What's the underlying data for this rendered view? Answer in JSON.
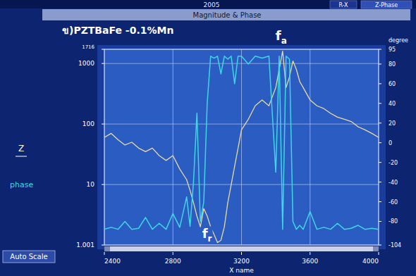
{
  "screen": {
    "header": "2005",
    "tabs": [
      "R-X",
      "Z-Phase"
    ],
    "button": "Auto Scale"
  },
  "chart_data": {
    "type": "line",
    "title": "Magnitude & Phase",
    "subtitle": "ข)PZTBaFe -0.1%Mn",
    "x_label": "X name",
    "y2_label": "degree",
    "log": "y",
    "grid": true,
    "legend": "left",
    "x": [
      2400,
      2440,
      2480,
      2520,
      2560,
      2600,
      2640,
      2680,
      2720,
      2760,
      2800,
      2840,
      2880,
      2900,
      2920,
      2940,
      2960,
      2980,
      3000,
      3020,
      3040,
      3060,
      3080,
      3100,
      3120,
      3140,
      3160,
      3180,
      3200,
      3240,
      3280,
      3320,
      3360,
      3400,
      3420,
      3440,
      3460,
      3480,
      3500,
      3520,
      3540,
      3560,
      3600,
      3640,
      3680,
      3720,
      3760,
      3800,
      3840,
      3880,
      3920,
      3960,
      4000
    ],
    "series": [
      {
        "name": "Z",
        "color": "#ead9a2",
        "values": [
          60,
          70,
          55,
          45,
          50,
          40,
          35,
          40,
          30,
          25,
          30,
          18,
          12,
          8,
          5,
          3,
          2,
          4,
          3,
          2,
          1.5,
          1.1,
          1.2,
          2,
          5,
          10,
          20,
          40,
          80,
          120,
          200,
          250,
          200,
          400,
          800,
          1600,
          400,
          600,
          1100,
          800,
          500,
          400,
          250,
          200,
          180,
          150,
          130,
          120,
          110,
          90,
          80,
          70,
          60
        ]
      },
      {
        "name": "phase",
        "color": "#3fd6e6",
        "axis": "y2",
        "values": [
          -88,
          -86,
          -88,
          -80,
          -88,
          -87,
          -76,
          -88,
          -82,
          -88,
          -72,
          -86,
          -55,
          -85,
          -40,
          30,
          -80,
          -60,
          40,
          88,
          86,
          88,
          70,
          88,
          85,
          88,
          60,
          88,
          88,
          80,
          88,
          86,
          88,
          -30,
          88,
          -88,
          88,
          85,
          -80,
          -88,
          -84,
          -88,
          -70,
          -88,
          -86,
          -88,
          -82,
          -88,
          -87,
          -84,
          -88,
          -87,
          -88
        ]
      }
    ],
    "xlim": [
      2400,
      4000
    ],
    "xticks": [
      2400,
      2800,
      3200,
      3600,
      4000
    ],
    "ylim": [
      1.001,
      1716
    ],
    "yticks": [
      1.001,
      10,
      100,
      1000,
      1716
    ],
    "y2lim": [
      -104,
      95
    ],
    "y2ticks": [
      -104,
      -80,
      -60,
      -40,
      -20,
      0,
      20,
      40,
      60,
      80,
      95
    ],
    "annotations": [
      {
        "text": "f",
        "subscript": "a",
        "x": 3440,
        "y": 1600
      },
      {
        "text": "f",
        "subscript": "r",
        "x": 3060,
        "y": 1.1
      }
    ]
  }
}
